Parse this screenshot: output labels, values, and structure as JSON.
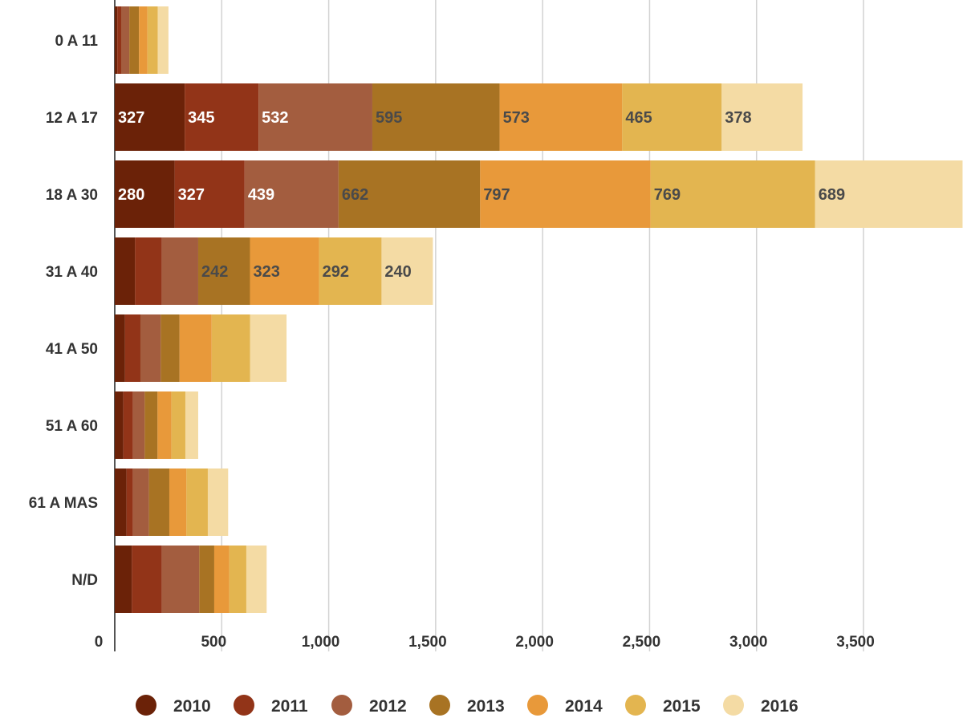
{
  "chart_data": {
    "type": "bar",
    "orientation": "horizontal",
    "stacked": true,
    "title": "",
    "xlabel": "",
    "ylabel": "",
    "xlim": [
      0,
      3860
    ],
    "xticks": [
      0,
      500,
      1000,
      1500,
      2000,
      2500,
      3000,
      3500
    ],
    "xtick_labels": [
      "0",
      "500",
      "1,000",
      "1,500",
      "2,000",
      "2,500",
      "3,000",
      "3,500"
    ],
    "grid": true,
    "legend_position": "bottom",
    "categories": [
      "0 A 11",
      "12 A 17",
      "18 A 30",
      "31 A 40",
      "41 A 50",
      "51 A 60",
      "61 A MAS",
      "N/D"
    ],
    "series": [
      {
        "name": "2010",
        "color": "#6b2208",
        "values": [
          12,
          327,
          280,
          95,
          48,
          40,
          55,
          80
        ]
      },
      {
        "name": "2011",
        "color": "#923418",
        "values": [
          18,
          345,
          327,
          125,
          72,
          45,
          30,
          140
        ]
      },
      {
        "name": "2012",
        "color": "#a35d3f",
        "values": [
          38,
          532,
          439,
          170,
          95,
          55,
          75,
          175
        ]
      },
      {
        "name": "2013",
        "color": "#a87323",
        "values": [
          45,
          595,
          662,
          242,
          88,
          60,
          95,
          70
        ]
      },
      {
        "name": "2014",
        "color": "#e8993a",
        "values": [
          40,
          573,
          797,
          323,
          150,
          65,
          80,
          70
        ]
      },
      {
        "name": "2015",
        "color": "#e3b550",
        "values": [
          48,
          465,
          769,
          292,
          180,
          65,
          100,
          80
        ]
      },
      {
        "name": "2016",
        "color": "#f4dba4",
        "values": [
          50,
          378,
          689,
          240,
          170,
          60,
          95,
          95
        ]
      }
    ],
    "data_labels": {
      "12 A 17": [
        "327",
        "345",
        "532",
        "595",
        "573",
        "465",
        "378"
      ],
      "18 A 30": [
        "280",
        "327",
        "439",
        "662",
        "797",
        "769",
        "689"
      ],
      "31 A 40": [
        "",
        "",
        "",
        "242",
        "323",
        "292",
        "240"
      ]
    }
  }
}
